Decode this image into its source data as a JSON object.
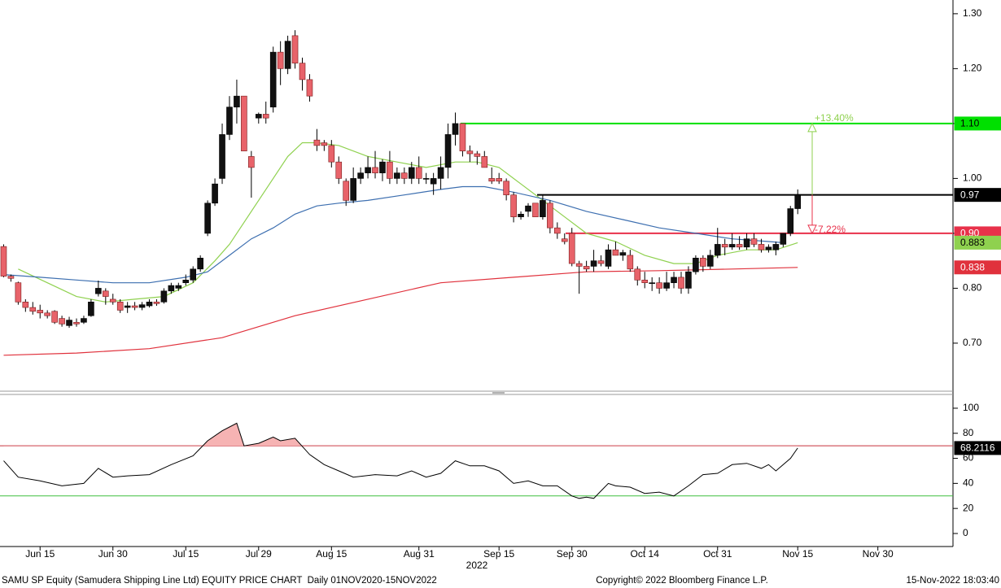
{
  "chart_data": [
    {
      "type": "candlestick",
      "xlim": [
        -0.5,
        130.2
      ],
      "ylim": [
        0.614,
        1.325
      ],
      "yticks": [
        {
          "value": 0.7,
          "label": "0.70"
        },
        {
          "value": 0.8,
          "label": "0.80"
        },
        {
          "value": 0.9,
          "label": "0.90"
        },
        {
          "value": 1.0,
          "label": "1.00"
        },
        {
          "value": 1.1,
          "label": "1.10"
        },
        {
          "value": 1.2,
          "label": "1.20"
        },
        {
          "value": 1.3,
          "label": "1.30"
        }
      ],
      "up_color": "#111111",
      "down_color": "#e8636a",
      "ohlc": [
        [
          0.876,
          0.88,
          0.82,
          0.822
        ],
        [
          0.822,
          0.825,
          0.812,
          0.818
        ],
        [
          0.81,
          0.812,
          0.77,
          0.775
        ],
        [
          0.775,
          0.78,
          0.757,
          0.765
        ],
        [
          0.765,
          0.775,
          0.752,
          0.758
        ],
        [
          0.76,
          0.77,
          0.745,
          0.755
        ],
        [
          0.755,
          0.76,
          0.745,
          0.75
        ],
        [
          0.758,
          0.76,
          0.735,
          0.738
        ],
        [
          0.745,
          0.75,
          0.73,
          0.735
        ],
        [
          0.732,
          0.748,
          0.728,
          0.742
        ],
        [
          0.738,
          0.745,
          0.73,
          0.735
        ],
        [
          0.738,
          0.75,
          0.735,
          0.745
        ],
        [
          0.75,
          0.78,
          0.748,
          0.775
        ],
        [
          0.79,
          0.814,
          0.785,
          0.8
        ],
        [
          0.795,
          0.8,
          0.77,
          0.785
        ],
        [
          0.78,
          0.79,
          0.77,
          0.775
        ],
        [
          0.775,
          0.78,
          0.755,
          0.76
        ],
        [
          0.765,
          0.775,
          0.755,
          0.768
        ],
        [
          0.768,
          0.775,
          0.76,
          0.765
        ],
        [
          0.765,
          0.775,
          0.76,
          0.77
        ],
        [
          0.768,
          0.78,
          0.765,
          0.775
        ],
        [
          0.775,
          0.78,
          0.768,
          0.772
        ],
        [
          0.775,
          0.8,
          0.772,
          0.795
        ],
        [
          0.795,
          0.81,
          0.79,
          0.805
        ],
        [
          0.8,
          0.81,
          0.795,
          0.805
        ],
        [
          0.81,
          0.825,
          0.805,
          0.815
        ],
        [
          0.815,
          0.84,
          0.81,
          0.835
        ],
        [
          0.835,
          0.86,
          0.83,
          0.855
        ],
        [
          0.9,
          0.96,
          0.895,
          0.955
        ],
        [
          0.955,
          1.0,
          0.95,
          0.99
        ],
        [
          1.0,
          1.1,
          0.99,
          1.08
        ],
        [
          1.08,
          1.15,
          1.07,
          1.13
        ],
        [
          1.13,
          1.18,
          1.1,
          1.15
        ],
        [
          1.15,
          1.15,
          1.05,
          1.05
        ],
        [
          1.04,
          1.05,
          0.965,
          1.02
        ],
        [
          1.11,
          1.12,
          1.1,
          1.117
        ],
        [
          1.117,
          1.14,
          1.1,
          1.11
        ],
        [
          1.13,
          1.24,
          1.12,
          1.23
        ],
        [
          1.23,
          1.25,
          1.17,
          1.2
        ],
        [
          1.2,
          1.26,
          1.19,
          1.25
        ],
        [
          1.26,
          1.27,
          1.2,
          1.21
        ],
        [
          1.21,
          1.22,
          1.16,
          1.18
        ],
        [
          1.18,
          1.19,
          1.14,
          1.15
        ],
        [
          1.07,
          1.09,
          1.05,
          1.06
        ],
        [
          1.065,
          1.07,
          1.05,
          1.06
        ],
        [
          1.06,
          1.07,
          1.02,
          1.03
        ],
        [
          1.03,
          1.04,
          0.99,
          1.0
        ],
        [
          0.995,
          1.0,
          0.95,
          0.96
        ],
        [
          0.96,
          1.02,
          0.955,
          1.0
        ],
        [
          1.0,
          1.02,
          0.99,
          1.01
        ],
        [
          1.01,
          1.04,
          1.0,
          1.02
        ],
        [
          1.02,
          1.05,
          1.0,
          1.01
        ],
        [
          1.01,
          1.035,
          0.995,
          1.03
        ],
        [
          1.03,
          1.05,
          0.99,
          1.0
        ],
        [
          1.0,
          1.02,
          0.99,
          1.01
        ],
        [
          1.01,
          1.02,
          0.99,
          1.0
        ],
        [
          1.0,
          1.03,
          0.99,
          1.02
        ],
        [
          1.02,
          1.04,
          0.99,
          1.0
        ],
        [
          1.0,
          1.01,
          0.99,
          1.0
        ],
        [
          0.99,
          1.01,
          0.97,
          1.0
        ],
        [
          1.0,
          1.04,
          0.98,
          1.02
        ],
        [
          1.02,
          1.1,
          1.0,
          1.08
        ],
        [
          1.08,
          1.12,
          1.06,
          1.1
        ],
        [
          1.1,
          1.1,
          1.04,
          1.05
        ],
        [
          1.05,
          1.06,
          1.03,
          1.045
        ],
        [
          1.045,
          1.05,
          1.025,
          1.04
        ],
        [
          1.04,
          1.05,
          1.02,
          1.02
        ],
        [
          1.0,
          1.02,
          0.99,
          0.995
        ],
        [
          1.0,
          1.01,
          0.99,
          0.995
        ],
        [
          0.995,
          1.0,
          0.96,
          0.97
        ],
        [
          0.97,
          0.975,
          0.92,
          0.93
        ],
        [
          0.93,
          0.94,
          0.925,
          0.935
        ],
        [
          0.94,
          0.955,
          0.93,
          0.95
        ],
        [
          0.955,
          0.955,
          0.93,
          0.93
        ],
        [
          0.93,
          0.97,
          0.925,
          0.96
        ],
        [
          0.955,
          0.96,
          0.9,
          0.91
        ],
        [
          0.91,
          0.92,
          0.89,
          0.9
        ],
        [
          0.89,
          0.9,
          0.88,
          0.885
        ],
        [
          0.9,
          0.91,
          0.84,
          0.845
        ],
        [
          0.845,
          0.85,
          0.79,
          0.84
        ],
        [
          0.84,
          0.85,
          0.83,
          0.835
        ],
        [
          0.84,
          0.87,
          0.83,
          0.85
        ],
        [
          0.85,
          0.86,
          0.84,
          0.845
        ],
        [
          0.84,
          0.88,
          0.835,
          0.87
        ],
        [
          0.87,
          0.885,
          0.86,
          0.86
        ],
        [
          0.86,
          0.87,
          0.85,
          0.865
        ],
        [
          0.86,
          0.87,
          0.83,
          0.835
        ],
        [
          0.835,
          0.84,
          0.805,
          0.815
        ],
        [
          0.815,
          0.83,
          0.8,
          0.81
        ],
        [
          0.81,
          0.82,
          0.795,
          0.81
        ],
        [
          0.81,
          0.82,
          0.79,
          0.8
        ],
        [
          0.8,
          0.83,
          0.795,
          0.81
        ],
        [
          0.81,
          0.83,
          0.8,
          0.82
        ],
        [
          0.82,
          0.83,
          0.79,
          0.8
        ],
        [
          0.8,
          0.84,
          0.79,
          0.83
        ],
        [
          0.83,
          0.86,
          0.825,
          0.855
        ],
        [
          0.855,
          0.86,
          0.83,
          0.84
        ],
        [
          0.84,
          0.87,
          0.835,
          0.86
        ],
        [
          0.86,
          0.91,
          0.855,
          0.88
        ],
        [
          0.88,
          0.89,
          0.86,
          0.875
        ],
        [
          0.875,
          0.9,
          0.87,
          0.88
        ],
        [
          0.88,
          0.895,
          0.87,
          0.875
        ],
        [
          0.875,
          0.9,
          0.87,
          0.89
        ],
        [
          0.89,
          0.9,
          0.875,
          0.88
        ],
        [
          0.88,
          0.89,
          0.865,
          0.87
        ],
        [
          0.87,
          0.88,
          0.865,
          0.875
        ],
        [
          0.87,
          0.885,
          0.86,
          0.88
        ],
        [
          0.88,
          0.9,
          0.875,
          0.9
        ],
        [
          0.9,
          0.95,
          0.895,
          0.945
        ],
        [
          0.945,
          0.98,
          0.935,
          0.97
        ]
      ],
      "lines": [
        {
          "color": "#8fd14f",
          "x": [
            2,
            6,
            10,
            14,
            18,
            22,
            26,
            29,
            31,
            33,
            35,
            37,
            39,
            41,
            43,
            46,
            50,
            54,
            58,
            62,
            65,
            68,
            71,
            74,
            77,
            80,
            84,
            88,
            92,
            95,
            98,
            102,
            106,
            109
          ],
          "values": [
            0.835,
            0.81,
            0.785,
            0.775,
            0.78,
            0.785,
            0.81,
            0.85,
            0.88,
            0.92,
            0.96,
            1.0,
            1.04,
            1.065,
            1.065,
            1.06,
            1.04,
            1.03,
            1.02,
            1.03,
            1.03,
            1.02,
            0.99,
            0.96,
            0.93,
            0.9,
            0.885,
            0.86,
            0.845,
            0.845,
            0.86,
            0.87,
            0.87,
            0.883
          ]
        },
        {
          "color": "#3d6fb0",
          "x": [
            0,
            5,
            10,
            15,
            20,
            25,
            28,
            31,
            34,
            37,
            40,
            43,
            46,
            50,
            55,
            60,
            63,
            66,
            70,
            75,
            80,
            85,
            90,
            95,
            100,
            105,
            107
          ],
          "values": [
            0.825,
            0.82,
            0.815,
            0.81,
            0.81,
            0.82,
            0.83,
            0.86,
            0.89,
            0.91,
            0.935,
            0.95,
            0.955,
            0.96,
            0.97,
            0.98,
            0.985,
            0.985,
            0.975,
            0.96,
            0.94,
            0.925,
            0.91,
            0.9,
            0.89,
            0.885,
            0.883
          ]
        },
        {
          "color": "#e0313c",
          "x": [
            0,
            10,
            20,
            30,
            40,
            50,
            60,
            70,
            80,
            90,
            100,
            109
          ],
          "values": [
            0.678,
            0.682,
            0.69,
            0.71,
            0.75,
            0.78,
            0.81,
            0.82,
            0.83,
            0.832,
            0.835,
            0.838
          ]
        }
      ],
      "levels": [
        {
          "value": 1.1,
          "label": "1.10",
          "color": "#00e000",
          "text_color": "#000000"
        },
        {
          "value": 0.97,
          "color": "#000000",
          "text_color": "#ffffff"
        },
        {
          "value": 0.9,
          "label": "0.90",
          "color": "#e8314a",
          "text_color": "#ffffff"
        }
      ],
      "annotations": [
        {
          "text": "+13.40%",
          "from": 0.97,
          "to": 1.1,
          "color": "#8fd14f"
        },
        {
          "text": "-7.22%",
          "from": 0.97,
          "to": 0.9,
          "color": "#e8314a"
        }
      ]
    },
    {
      "type": "line",
      "xlim": [
        -0.5,
        130.2
      ],
      "ylim": [
        -10.4,
        109.7
      ],
      "yticks": [
        0,
        20,
        40,
        60,
        80,
        100
      ],
      "xticks": [
        {
          "value": 5,
          "label": "Jun 15"
        },
        {
          "value": 15,
          "label": "Jun 30"
        },
        {
          "value": 25,
          "label": "Jul 15"
        },
        {
          "value": 35,
          "label": "Jul 29"
        },
        {
          "value": 45,
          "label": "Aug 15"
        },
        {
          "value": 57,
          "label": "Aug 31"
        },
        {
          "value": 68,
          "label": "Sep 15"
        },
        {
          "value": 78,
          "label": "Sep 30"
        },
        {
          "value": 88,
          "label": "Oct 14"
        },
        {
          "value": 98,
          "label": "Oct 31"
        },
        {
          "value": 109,
          "label": "Nov 15"
        },
        {
          "value": 120,
          "label": "Nov 30"
        }
      ],
      "x_axis_year": "2022",
      "color": "#000000",
      "overbought": 70,
      "oversold": 30,
      "overbought_color": "#c8313c",
      "oversold_color": "#3fbf3f",
      "x": [
        0,
        2,
        5,
        8,
        11,
        13,
        15,
        17,
        20,
        23,
        26,
        28,
        30,
        32,
        33,
        35,
        37,
        38,
        40,
        42,
        44,
        46,
        48,
        51,
        54,
        56,
        58,
        60,
        62,
        64,
        66,
        68,
        70,
        72,
        74,
        76,
        78,
        79,
        80,
        81,
        82,
        83,
        84,
        86,
        88,
        90,
        92,
        94,
        96,
        98,
        100,
        102,
        104,
        105,
        106,
        108,
        109
      ],
      "values": [
        58,
        45,
        42,
        38,
        40,
        52,
        45,
        46,
        47,
        55,
        62,
        74,
        82,
        88,
        70,
        72,
        77,
        74,
        76,
        63,
        55,
        50,
        45,
        47,
        46,
        50,
        45,
        48,
        58,
        54,
        54,
        50,
        40,
        42,
        38,
        38,
        30,
        28,
        29,
        28,
        34,
        40,
        38,
        37,
        32,
        33,
        30,
        38,
        47,
        48,
        55,
        56,
        52,
        55,
        50,
        60,
        68.2116
      ]
    }
  ],
  "footer": {
    "left": "SAMU SP Equity (Samudera Shipping Line Ltd) EQUITY PRICE CHART  Daily 01NOV2020-15NOV2022",
    "center": "Copyright© 2022 Bloomberg Finance L.P.",
    "right": "15-Nov-2022 18:03:40"
  }
}
